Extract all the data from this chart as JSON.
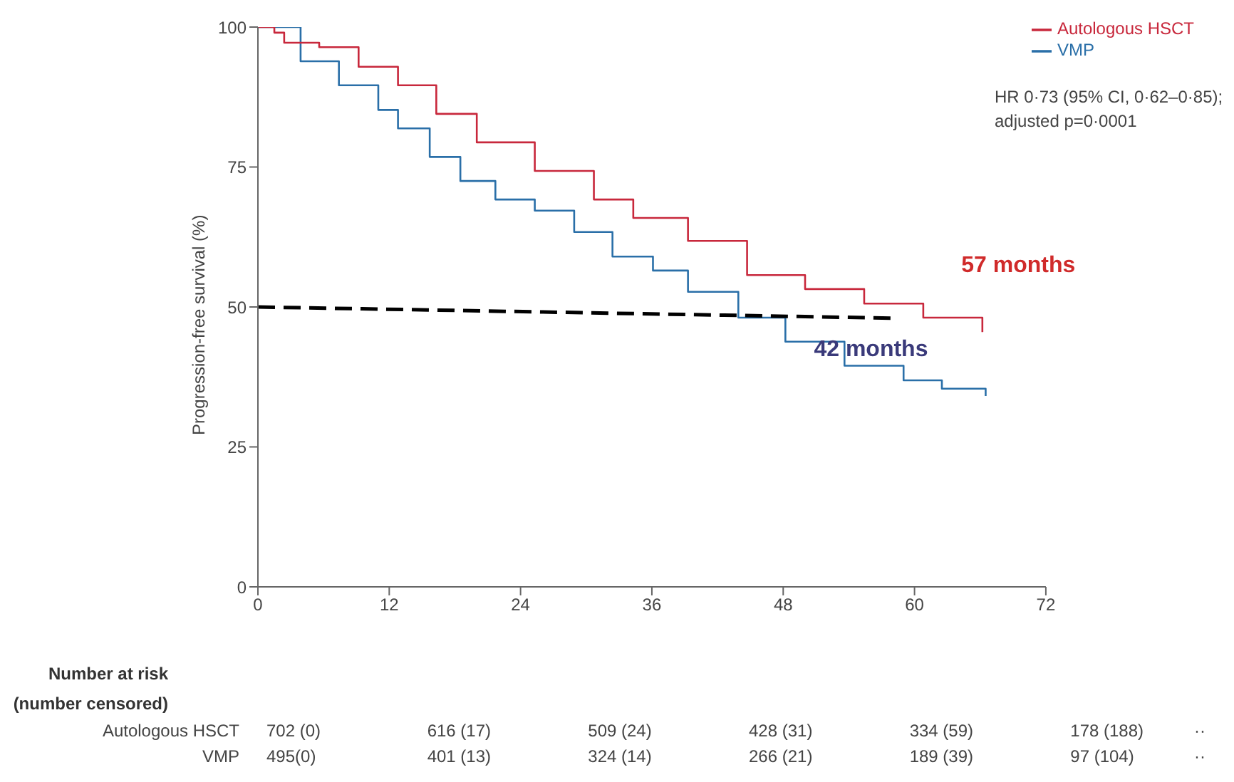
{
  "chart_data": {
    "type": "step",
    "ylabel": "Progression-free survival (%)",
    "xlim": [
      0,
      72
    ],
    "xticks": [
      0,
      12,
      24,
      36,
      48,
      60,
      72
    ],
    "ylim": [
      0,
      100
    ],
    "yticks": [
      0,
      25,
      50,
      75,
      100
    ],
    "grid": false,
    "legend": "top right",
    "series": [
      {
        "name": "VMP",
        "color": "#2a6fa8",
        "x": [
          0,
          3.9,
          7.4,
          11,
          12.8,
          15.7,
          18.5,
          21.7,
          25.3,
          28.9,
          32.4,
          36.1,
          39.3,
          43.9,
          48.2,
          53.6,
          59,
          62.5,
          66.5
        ],
        "values": [
          100,
          93.9,
          89.6,
          85.2,
          81.9,
          76.8,
          72.5,
          69.2,
          67.2,
          63.4,
          59,
          56.5,
          52.7,
          48.1,
          43.8,
          39.5,
          36.9,
          35.4,
          34.1
        ]
      },
      {
        "name": "Autologous HSCT",
        "color": "#c8283c",
        "x": [
          0,
          1.5,
          2.4,
          5.6,
          9.2,
          12.8,
          16.3,
          20,
          25.3,
          30.7,
          34.3,
          39.3,
          44.7,
          50,
          55.4,
          60.8,
          66.2
        ],
        "values": [
          100,
          99,
          97.2,
          96.4,
          92.9,
          89.6,
          84.5,
          79.4,
          74.3,
          69.2,
          65.9,
          61.8,
          55.7,
          53.2,
          50.6,
          48.1,
          45.5
        ]
      },
      {
        "type": "line",
        "color": "#000000",
        "line_style": "dashed",
        "x": [
          0,
          58
        ],
        "values": [
          50,
          48
        ]
      }
    ],
    "annotations": [
      "42 months",
      "57 months",
      "HR 0·73 (95% CI, 0·62–0·85);",
      "adjusted p=0·0001",
      "Number at risk",
      "(number censored)",
      "Autologous HSCT",
      "702 (0)",
      "616 (17)",
      "509 (24)",
      "428 (31)",
      "334 (59)",
      "178 (188)",
      "··",
      "VMP",
      "495(0)",
      "401 (13)",
      "324 (14)",
      "266 (21)",
      "189 (39)",
      "97 (104)",
      "··"
    ]
  }
}
